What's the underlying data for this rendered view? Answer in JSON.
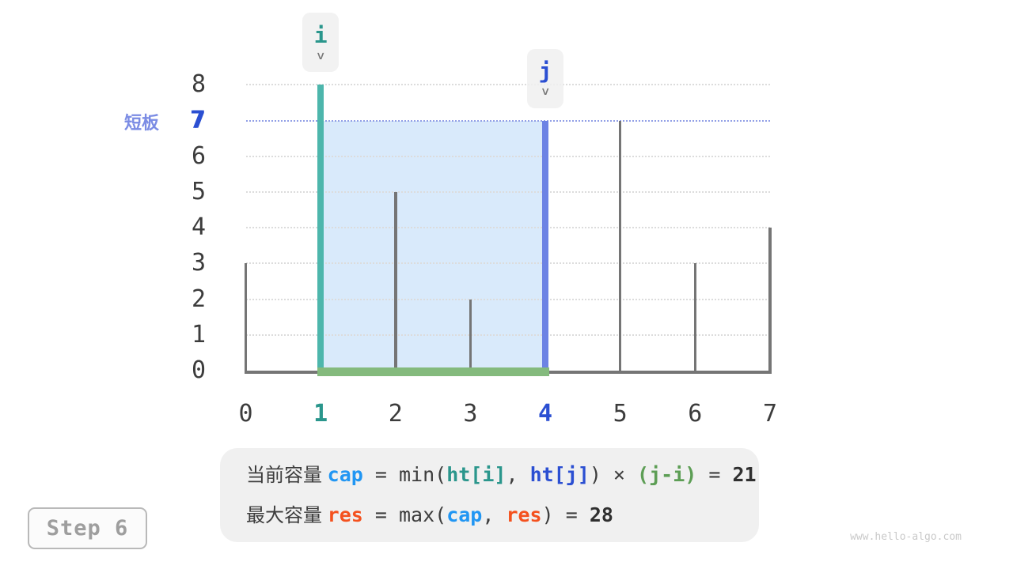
{
  "watermark": {
    "text": "www.hello-algo.com",
    "color": "#c9c9c9"
  },
  "step_box": {
    "label": "Step 6"
  },
  "annotations": {
    "short_board": {
      "label": "短板",
      "label_color": "#7b8ce4",
      "value": "7",
      "value_color": "#2b4fd2"
    }
  },
  "pointers": [
    {
      "name": "i",
      "index": 1,
      "color": "#2a968c",
      "arrow": "∨"
    },
    {
      "name": "j",
      "index": 4,
      "color": "#2b4fd2",
      "arrow": "∨"
    }
  ],
  "chart_data": {
    "type": "bar",
    "title": "",
    "xlabel": "",
    "ylabel": "",
    "x": [
      0,
      1,
      2,
      3,
      4,
      5,
      6,
      7
    ],
    "heights": [
      3,
      8,
      5,
      2,
      7,
      7,
      3,
      4
    ],
    "ylim": [
      0,
      8
    ],
    "yticks": [
      0,
      1,
      2,
      3,
      4,
      5,
      6,
      7,
      8
    ],
    "xticks": [
      0,
      1,
      2,
      3,
      4,
      5,
      6,
      7
    ],
    "grid": true,
    "legend": "none",
    "bar_default_color": "#757575",
    "highlighted_bars": [
      {
        "index": 1,
        "color": "#4db6ac"
      },
      {
        "index": 4,
        "color": "#6d83e4"
      }
    ],
    "highlighted_xticks": [
      {
        "index": 1,
        "color": "#2a968c"
      },
      {
        "index": 4,
        "color": "#2b4fd2"
      }
    ],
    "water": {
      "from": 1,
      "to": 4,
      "level": 7,
      "area": 21,
      "fill_color": "#d9eafb",
      "level_line_color": "#92a0e6",
      "bottom_line_color": "#84ba7d"
    },
    "axis_color": "#757575",
    "grid_color": "#dcdcdc",
    "tick_color": "#3c3c3c",
    "water_level_tick_color": "#2b4fd2"
  },
  "formula": {
    "background": "#f0f0f0",
    "lines": [
      {
        "tokens": [
          {
            "t": "当前容量 ",
            "c": "#3d3d3d",
            "b": false,
            "cjk": true
          },
          {
            "t": "cap",
            "c": "#2196f3",
            "b": true
          },
          {
            "t": " = min(",
            "c": "#3d3d3d",
            "b": false
          },
          {
            "t": "ht[i]",
            "c": "#2a968c",
            "b": true
          },
          {
            "t": ", ",
            "c": "#3d3d3d",
            "b": false
          },
          {
            "t": "ht[j]",
            "c": "#2b4fd2",
            "b": true
          },
          {
            "t": ") × ",
            "c": "#3d3d3d",
            "b": false
          },
          {
            "t": "(j-i)",
            "c": "#5d9e55",
            "b": true
          },
          {
            "t": " = ",
            "c": "#3d3d3d",
            "b": false
          },
          {
            "t": "21",
            "c": "#2f2f2f",
            "b": true
          }
        ]
      },
      {
        "tokens": [
          {
            "t": "最大容量 ",
            "c": "#3d3d3d",
            "b": false,
            "cjk": true
          },
          {
            "t": "res",
            "c": "#f4511e",
            "b": true
          },
          {
            "t": " = max(",
            "c": "#3d3d3d",
            "b": false
          },
          {
            "t": "cap",
            "c": "#2196f3",
            "b": true
          },
          {
            "t": ", ",
            "c": "#3d3d3d",
            "b": false
          },
          {
            "t": "res",
            "c": "#f4511e",
            "b": true
          },
          {
            "t": ") = ",
            "c": "#3d3d3d",
            "b": false
          },
          {
            "t": "28",
            "c": "#2f2f2f",
            "b": true
          }
        ]
      }
    ]
  }
}
